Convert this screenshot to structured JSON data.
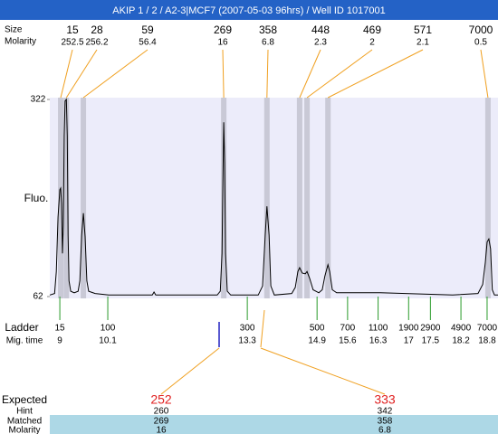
{
  "chart_data": {
    "type": "line",
    "title": "AKIP 1 / 2 / A2-3|MCF7 (2007-05-03 96hrs) / Well ID 1017001",
    "ylabel": "Fluo.",
    "ylim": [
      62,
      322
    ],
    "yticks": [
      62,
      322
    ],
    "xlim": [
      8.77,
      19.05
    ],
    "trace": {
      "color": "#000000",
      "x": [
        8.77,
        8.88,
        8.92,
        8.96,
        9.0,
        9.02,
        9.04,
        9.06,
        9.08,
        9.1,
        9.12,
        9.15,
        9.17,
        9.19,
        9.21,
        9.25,
        9.33,
        9.42,
        9.46,
        9.5,
        9.54,
        9.58,
        9.62,
        9.66,
        9.81,
        10.12,
        11.12,
        11.16,
        11.2,
        12.61,
        12.68,
        12.72,
        12.74,
        12.76,
        12.78,
        12.8,
        12.84,
        12.92,
        13.55,
        13.65,
        13.71,
        13.75,
        13.8,
        13.84,
        13.92,
        14.32,
        14.4,
        14.46,
        14.5,
        14.56,
        14.63,
        14.67,
        14.73,
        14.81,
        14.94,
        15.02,
        15.08,
        15.15,
        15.19,
        15.25,
        15.35,
        16.35,
        18.01,
        18.59,
        18.7,
        18.76,
        18.8,
        18.84,
        18.88,
        18.92,
        18.97,
        19.05
      ],
      "y": [
        64,
        66,
        95,
        167,
        203,
        205,
        185,
        119,
        155,
        274,
        320,
        322,
        274,
        143,
        83,
        69,
        67,
        69,
        83,
        143,
        172,
        141,
        83,
        69,
        66,
        64,
        64,
        68,
        64,
        64,
        69,
        119,
        215,
        292,
        238,
        119,
        69,
        64,
        64,
        76,
        143,
        181,
        143,
        76,
        64,
        66,
        74,
        95,
        100,
        93,
        92,
        95,
        86,
        71,
        67,
        71,
        89,
        104,
        95,
        71,
        67,
        67,
        64,
        66,
        78,
        107,
        134,
        138,
        125,
        71,
        64,
        64
      ]
    },
    "peaks": {
      "size_label": "Size",
      "molarity_label": "Molarity",
      "band_color": "#c9c9d6",
      "line_color": "#f0a020",
      "sizes": [
        15,
        28,
        59,
        269,
        358,
        448,
        469,
        571,
        7000
      ],
      "molarities": [
        252.5,
        256.2,
        56.4,
        16,
        6.8,
        2.3,
        2,
        2.1,
        0.5
      ],
      "migration_times": [
        9.02,
        9.15,
        9.54,
        12.76,
        13.75,
        14.5,
        14.67,
        15.15,
        18.82
      ]
    },
    "ladder": {
      "label": "Ladder",
      "time_label": "Mig. time",
      "color": "#2a9a2a",
      "sizes": [
        15,
        100,
        300,
        500,
        700,
        1100,
        1900,
        2900,
        4900,
        7000
      ],
      "migration_times": [
        9,
        10.1,
        13.3,
        14.9,
        15.6,
        16.3,
        17,
        17.5,
        18.2,
        18.8
      ]
    },
    "expected": {
      "label": "Expected",
      "values": [
        252,
        333
      ],
      "rows": [
        {
          "label": "Hint",
          "values": [
            260,
            342
          ]
        },
        {
          "label": "Matched",
          "values": [
            269,
            358
          ]
        },
        {
          "label": "Molarity",
          "values": [
            16,
            6.8
          ]
        }
      ]
    }
  }
}
